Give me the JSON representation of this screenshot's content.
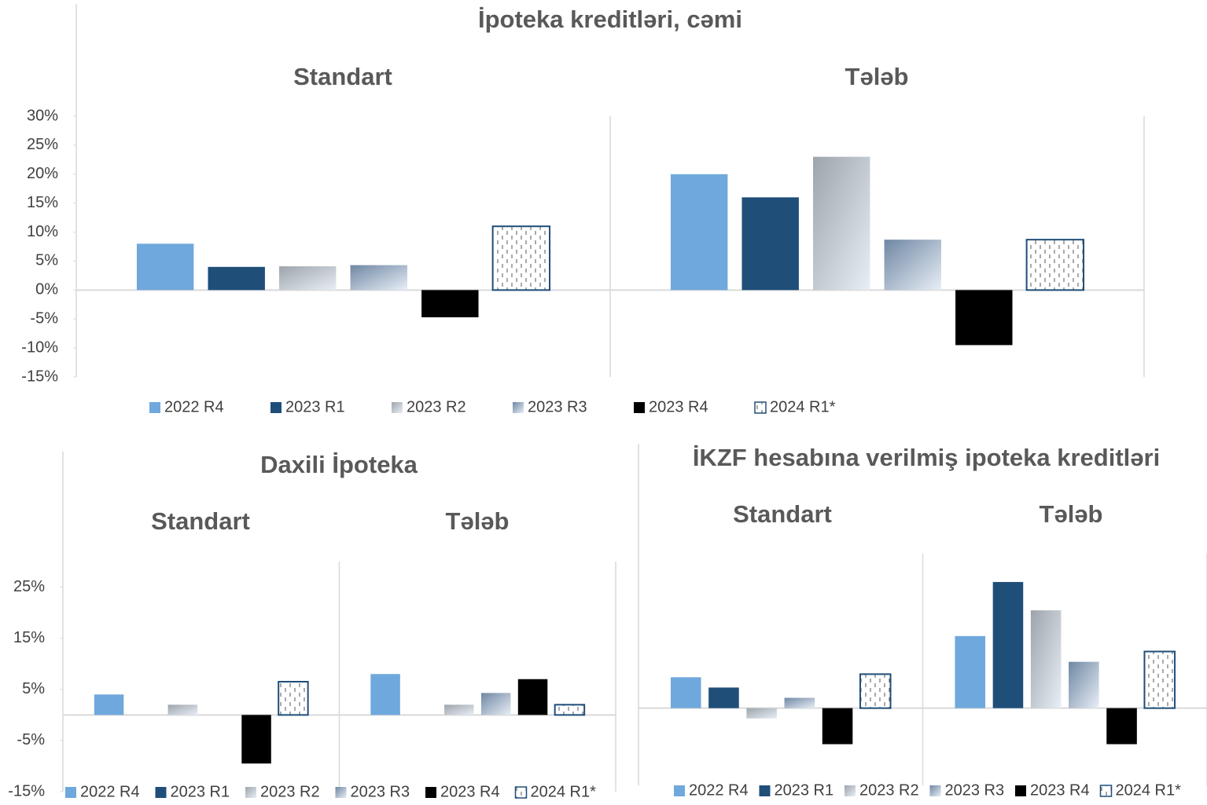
{
  "chart_data": [
    {
      "type": "bar",
      "title": "İpoteka kreditləri, cəmi",
      "groups": [
        "Standart",
        "Tələb"
      ],
      "ylim": [
        -15,
        30
      ],
      "yticks": [
        {
          "value": -15,
          "label": "-15%"
        },
        {
          "value": -10,
          "label": "-10%"
        },
        {
          "value": -5,
          "label": "-5%"
        },
        {
          "value": 0,
          "label": "0%"
        },
        {
          "value": 5,
          "label": "5%"
        },
        {
          "value": 10,
          "label": "10%"
        },
        {
          "value": 15,
          "label": "15%"
        },
        {
          "value": 20,
          "label": "20%"
        },
        {
          "value": 25,
          "label": "25%"
        },
        {
          "value": 30,
          "label": "30%"
        }
      ],
      "series": [
        {
          "name": "2022 R4",
          "color": "#6fa8dc",
          "fill": "solid",
          "values": [
            8,
            20
          ]
        },
        {
          "name": "2023 R1",
          "color": "#1f4e79",
          "fill": "solid",
          "values": [
            4,
            16
          ]
        },
        {
          "name": "2023 R2",
          "color": "#9ea4ab",
          "fill": "gradient",
          "values": [
            4.1,
            23
          ]
        },
        {
          "name": "2023 R3",
          "color": "#6f87a3",
          "fill": "gradient",
          "values": [
            4.3,
            8.7
          ]
        },
        {
          "name": "2023 R4",
          "color": "#000000",
          "fill": "solid",
          "values": [
            -4.7,
            -9.5
          ]
        },
        {
          "name": "2024 R1*",
          "color": "#1f4e79",
          "fill": "pattern",
          "values": [
            11,
            8.7
          ]
        }
      ]
    },
    {
      "type": "bar",
      "title": "Daxili İpoteka",
      "groups": [
        "Standart",
        "Tələb"
      ],
      "ylim": [
        -15,
        30
      ],
      "yticks": [
        {
          "value": -15,
          "label": "-15%"
        },
        {
          "value": -5,
          "label": "-5%"
        },
        {
          "value": 5,
          "label": "5%"
        },
        {
          "value": 15,
          "label": "15%"
        },
        {
          "value": 25,
          "label": "25%"
        }
      ],
      "series": [
        {
          "name": "2022 R4",
          "color": "#6fa8dc",
          "fill": "solid",
          "values": [
            4,
            8
          ]
        },
        {
          "name": "2023 R1",
          "color": "#1f4e79",
          "fill": "solid",
          "values": [
            0,
            0
          ]
        },
        {
          "name": "2023 R2",
          "color": "#9ea4ab",
          "fill": "gradient",
          "values": [
            2,
            2
          ]
        },
        {
          "name": "2023 R3",
          "color": "#6f87a3",
          "fill": "gradient",
          "values": [
            0,
            4.3
          ]
        },
        {
          "name": "2023 R4",
          "color": "#000000",
          "fill": "solid",
          "values": [
            -9.5,
            7
          ]
        },
        {
          "name": "2024 R1*",
          "color": "#1f4e79",
          "fill": "pattern",
          "values": [
            6.5,
            2
          ]
        }
      ]
    },
    {
      "type": "bar",
      "title": "İKZF hesabına verilmiş ipoteka kreditləri",
      "groups": [
        "Standart",
        "Tələb"
      ],
      "ylim": [
        -15,
        30
      ],
      "series": [
        {
          "name": "2022 R4",
          "color": "#6fa8dc",
          "fill": "solid",
          "values": [
            6,
            14
          ]
        },
        {
          "name": "2023 R1",
          "color": "#1f4e79",
          "fill": "solid",
          "values": [
            4,
            24.5
          ]
        },
        {
          "name": "2023 R2",
          "color": "#9ea4ab",
          "fill": "gradient",
          "values": [
            -2,
            19
          ]
        },
        {
          "name": "2023 R3",
          "color": "#6f87a3",
          "fill": "gradient",
          "values": [
            2,
            9
          ]
        },
        {
          "name": "2023 R4",
          "color": "#000000",
          "fill": "solid",
          "values": [
            -7,
            -7
          ]
        },
        {
          "name": "2024 R1*",
          "color": "#1f4e79",
          "fill": "pattern",
          "values": [
            6.6,
            11
          ]
        }
      ]
    }
  ]
}
